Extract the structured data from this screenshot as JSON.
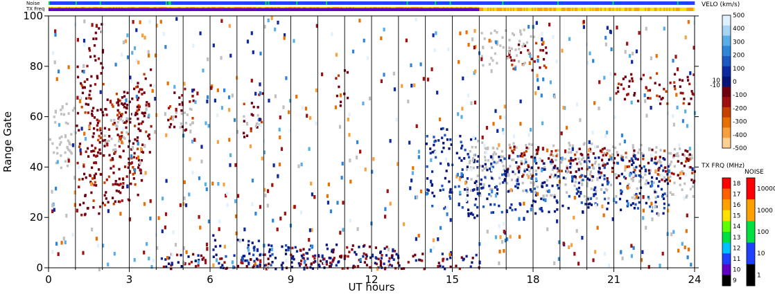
{
  "chart_data": {
    "type": "heatmap",
    "xlabel": "UT hours",
    "ylabel": "Range Gate",
    "xlim": [
      0,
      24
    ],
    "ylim": [
      0,
      100
    ],
    "x_ticks": [
      "0",
      "3",
      "6",
      "9",
      "12",
      "15",
      "18",
      "21",
      "24"
    ],
    "y_ticks": [
      "0",
      "20",
      "40",
      "60",
      "80",
      "100"
    ],
    "top_bars": {
      "noise_label": "Noise",
      "txfreq_label": "TX Freq"
    },
    "vertical_lines_ut": [
      1,
      2,
      3,
      4,
      5,
      6,
      7,
      8,
      9,
      10,
      11,
      12,
      13,
      14,
      15,
      16,
      17,
      18,
      19,
      20,
      21,
      22,
      23,
      24
    ],
    "velocity_scale": {
      "title": "VELO (km/s)",
      "ticks": [
        "500",
        "400",
        "300",
        "200",
        "100",
        "0",
        "-100",
        "-200",
        "-300",
        "-400",
        "-500"
      ],
      "small_ticks": [
        "10",
        "-10"
      ],
      "colors": [
        "#e0f0ff",
        "#a8d4f4",
        "#5aaee8",
        "#2f86d8",
        "#1d58c0",
        "#0d2aa0",
        "#081478",
        "#700010",
        "#a01010",
        "#c84000",
        "#e87000",
        "#f8a040",
        "#fcd090"
      ]
    },
    "txfreq_scale": {
      "title": "TX FRQ (MHz)",
      "ticks": [
        "18",
        "17",
        "16",
        "15",
        "14",
        "13",
        "12",
        "11",
        "10",
        "9"
      ],
      "colors": [
        "#ff0000",
        "#ff6000",
        "#ffa000",
        "#ffe000",
        "#60ff00",
        "#00e040",
        "#00c0ff",
        "#2040ff",
        "#6000c0",
        "#000000"
      ]
    },
    "noise_scale": {
      "title": "NOISE",
      "ticks": [
        "10000",
        "1000",
        "100",
        "10",
        "1"
      ],
      "colors": [
        "#ff0000",
        "#ffa000",
        "#00e040",
        "#2040ff",
        "#000000"
      ]
    },
    "features": [
      {
        "kind": "gs",
        "x0": 0.0,
        "x1": 1.0,
        "y0": 40,
        "y1": 65,
        "slope": 10
      },
      {
        "kind": "neg",
        "x0": 1.0,
        "x1": 2.0,
        "y0": 25,
        "y1": 90,
        "slope": 40
      },
      {
        "kind": "neg",
        "x0": 1.5,
        "x1": 3.5,
        "y0": 25,
        "y1": 70,
        "slope": 20
      },
      {
        "kind": "neg",
        "x0": 2.5,
        "x1": 3.8,
        "y0": 35,
        "y1": 75,
        "slope": 25
      },
      {
        "kind": "gs",
        "x0": 2.0,
        "x1": 3.0,
        "y0": 45,
        "y1": 60,
        "slope": 5
      },
      {
        "kind": "neg",
        "x0": 4.4,
        "x1": 5.4,
        "y0": 55,
        "y1": 72,
        "slope": 0
      },
      {
        "kind": "gs",
        "x0": 4.4,
        "x1": 5.4,
        "y0": 56,
        "y1": 64,
        "slope": 0
      },
      {
        "kind": "neg",
        "x0": 7.2,
        "x1": 8.0,
        "y0": 55,
        "y1": 70,
        "slope": 15
      },
      {
        "kind": "gs",
        "x0": 7.2,
        "x1": 7.8,
        "y0": 56,
        "y1": 62,
        "slope": 0
      },
      {
        "kind": "neg",
        "x0": 10.6,
        "x1": 11.1,
        "y0": 64,
        "y1": 78,
        "slope": 10
      },
      {
        "kind": "pos",
        "x0": 14.0,
        "x1": 16.0,
        "y0": 22,
        "y1": 55,
        "slope": -15
      },
      {
        "kind": "gs",
        "x0": 15.5,
        "x1": 24.0,
        "y0": 28,
        "y1": 50,
        "slope": -5
      },
      {
        "kind": "neg",
        "x0": 17.0,
        "x1": 24.0,
        "y0": 35,
        "y1": 48,
        "slope": -3
      },
      {
        "kind": "pos",
        "x0": 16.0,
        "x1": 23.0,
        "y0": 22,
        "y1": 45,
        "slope": 0
      },
      {
        "kind": "neg",
        "x0": 17.0,
        "x1": 18.5,
        "y0": 78,
        "y1": 90,
        "slope": 0
      },
      {
        "kind": "gs",
        "x0": 16.0,
        "x1": 18.0,
        "y0": 80,
        "y1": 95,
        "slope": 0
      },
      {
        "kind": "neg",
        "x0": 21.0,
        "x1": 24.0,
        "y0": 65,
        "y1": 78,
        "slope": 0
      },
      {
        "kind": "mix",
        "x0": 4.0,
        "x1": 16.0,
        "y0": 0,
        "y1": 6,
        "slope": 0
      },
      {
        "kind": "mix",
        "x0": 9.0,
        "x1": 13.0,
        "y0": 0,
        "y1": 10,
        "slope": 0
      },
      {
        "kind": "pos",
        "x0": 6.0,
        "x1": 9.0,
        "y0": 2,
        "y1": 12,
        "slope": -8
      }
    ]
  }
}
